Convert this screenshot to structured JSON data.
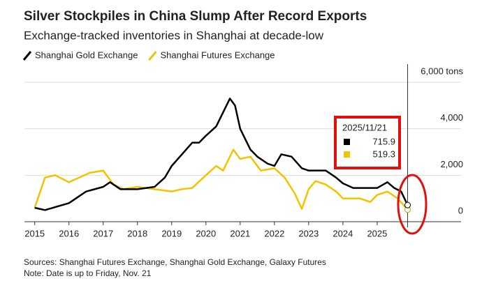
{
  "chart_data": {
    "type": "line",
    "title": "Silver Stockpiles in China Slump After Record Exports",
    "subtitle": "Exchange-tracked inventories in Shanghai at decade-low",
    "sources": "Sources: Shanghai Futures Exchange, Shanghai Gold Exchange, Galaxy Futures",
    "note": "Note: Date is up to Friday, Nov. 21",
    "tooltip_date": "2025/11/21",
    "xlim": [
      2014.7,
      2027.45
    ],
    "xticks": [
      2015,
      2016,
      2017,
      2018,
      2019,
      2020,
      2021,
      2022,
      2023,
      2024,
      2025
    ],
    "ylim": [
      0,
      6000
    ],
    "yticks": [
      0,
      {
        "value": 2000,
        "label": "2,000"
      },
      {
        "value": 4000,
        "label": "4,000"
      },
      {
        "value": 6000,
        "label": "6,000 tons"
      }
    ],
    "grid": true,
    "series": [
      {
        "name": "Shanghai Gold Exchange",
        "color": "#000000",
        "x": [
          2015.0,
          2015.3,
          2016.0,
          2016.5,
          2017.0,
          2017.2,
          2017.3,
          2017.5,
          2018.0,
          2018.5,
          2018.8,
          2019.0,
          2019.3,
          2019.6,
          2019.8,
          2020.0,
          2020.3,
          2020.5,
          2020.7,
          2020.85,
          2021.0,
          2021.3,
          2021.5,
          2021.8,
          2022.0,
          2022.2,
          2022.5,
          2022.8,
          2023.0,
          2023.5,
          2023.8,
          2024.0,
          2024.3,
          2024.6,
          2025.0,
          2025.3,
          2025.5,
          2025.7,
          2025.89
        ],
        "values": [
          600,
          500,
          800,
          1300,
          1500,
          1700,
          1600,
          1400,
          1400,
          1500,
          1900,
          2400,
          2900,
          3400,
          3400,
          3700,
          4100,
          4700,
          5300,
          5000,
          4000,
          3100,
          2800,
          2500,
          2400,
          2900,
          2800,
          2300,
          2200,
          2200,
          1900,
          1650,
          1450,
          1450,
          1450,
          1700,
          1450,
          1300,
          715.9
        ]
      },
      {
        "name": "Shanghai Futures Exchange",
        "color": "#f2c300",
        "x": [
          2015.0,
          2015.3,
          2015.6,
          2016.0,
          2016.3,
          2016.6,
          2017.0,
          2017.3,
          2017.6,
          2018.0,
          2018.5,
          2019.0,
          2019.3,
          2019.6,
          2020.0,
          2020.3,
          2020.5,
          2020.8,
          2021.0,
          2021.3,
          2021.6,
          2022.0,
          2022.3,
          2022.6,
          2022.8,
          2023.0,
          2023.2,
          2023.5,
          2023.8,
          2024.0,
          2024.5,
          2024.8,
          2025.0,
          2025.3,
          2025.6,
          2025.89
        ],
        "values": [
          600,
          1900,
          2000,
          1700,
          1900,
          2100,
          2200,
          1600,
          1400,
          1500,
          1400,
          1300,
          1400,
          1450,
          2000,
          2400,
          2200,
          3100,
          2700,
          2800,
          2200,
          2300,
          1900,
          1200,
          550,
          1400,
          1750,
          1600,
          1300,
          1000,
          1000,
          850,
          1150,
          1300,
          1000,
          519.3
        ]
      }
    ]
  }
}
